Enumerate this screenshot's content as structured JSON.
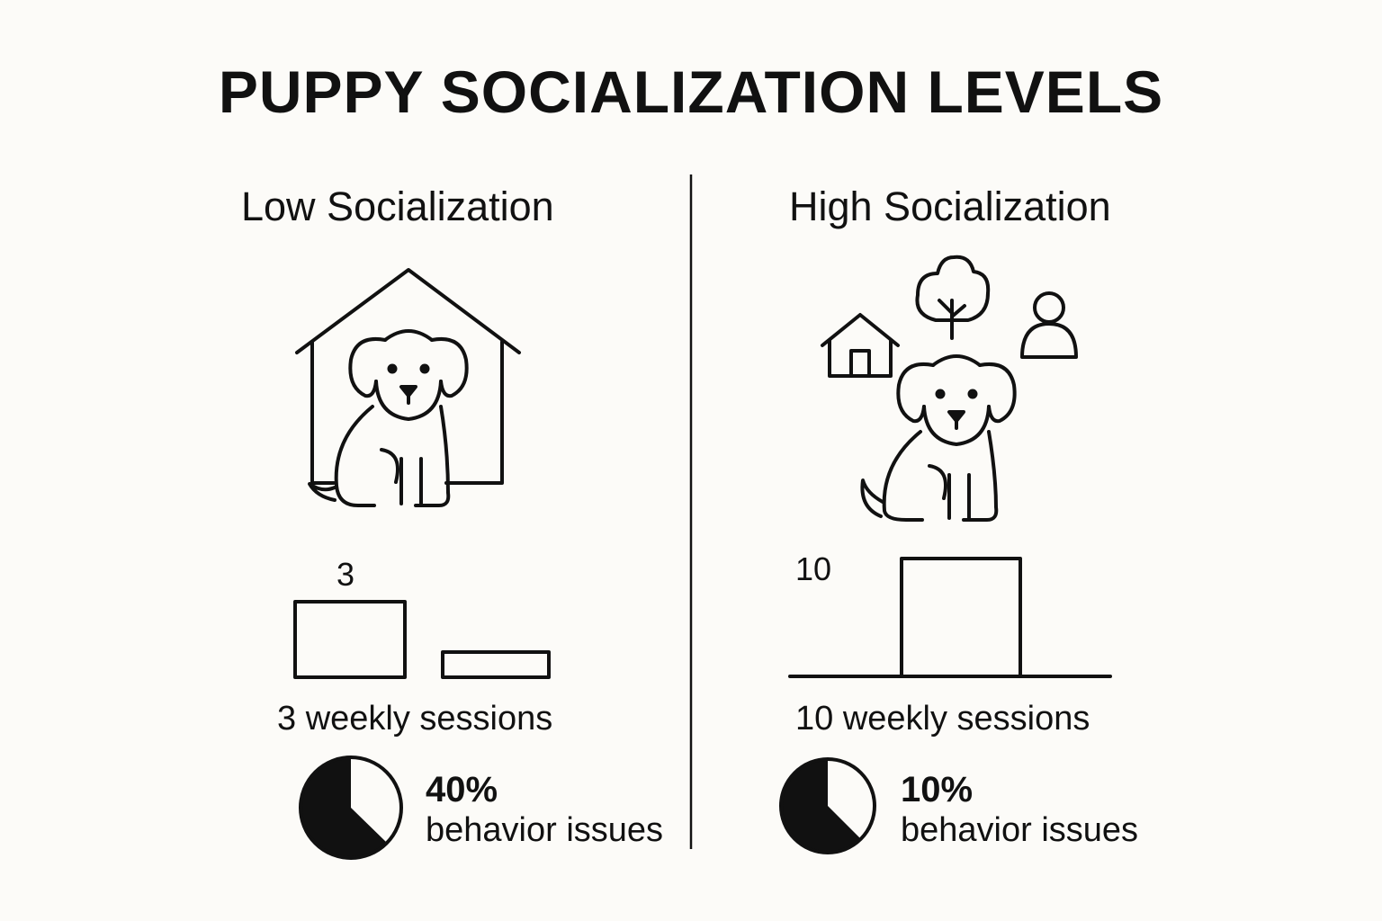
{
  "title": "PUPPY SOCIALIZATION LEVELS",
  "panels": [
    {
      "heading": "Low Socialization",
      "bar_value": "3",
      "sessions_caption": "3 weekly sessions",
      "issues_percent_label": "40%",
      "issues_text": "behavior issues",
      "icons": [
        "doghouse-icon",
        "puppy-icon"
      ]
    },
    {
      "heading": "High Socialization",
      "bar_value": "10",
      "sessions_caption": "10 weekly sessions",
      "issues_percent_label": "10%",
      "issues_text": "behavior issues",
      "icons": [
        "house-icon",
        "tree-icon",
        "person-icon",
        "puppy-icon"
      ]
    }
  ],
  "colors": {
    "ink": "#111111",
    "background": "#fcfbf8"
  }
}
